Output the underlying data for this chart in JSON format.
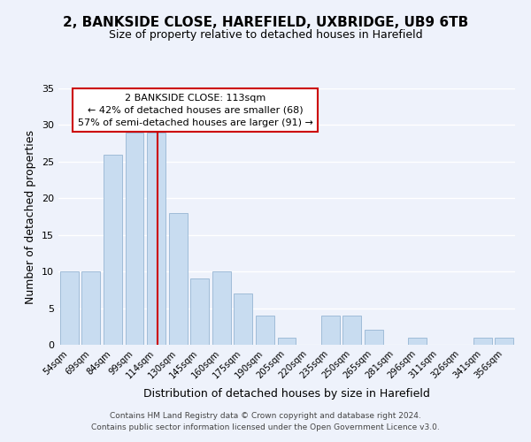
{
  "title": "2, BANKSIDE CLOSE, HAREFIELD, UXBRIDGE, UB9 6TB",
  "subtitle": "Size of property relative to detached houses in Harefield",
  "xlabel": "Distribution of detached houses by size in Harefield",
  "ylabel": "Number of detached properties",
  "bar_labels": [
    "54sqm",
    "69sqm",
    "84sqm",
    "99sqm",
    "114sqm",
    "130sqm",
    "145sqm",
    "160sqm",
    "175sqm",
    "190sqm",
    "205sqm",
    "220sqm",
    "235sqm",
    "250sqm",
    "265sqm",
    "281sqm",
    "296sqm",
    "311sqm",
    "326sqm",
    "341sqm",
    "356sqm"
  ],
  "bar_values": [
    10,
    10,
    26,
    29,
    29,
    18,
    9,
    10,
    7,
    4,
    1,
    0,
    4,
    4,
    2,
    0,
    1,
    0,
    0,
    1,
    1
  ],
  "bar_color": "#c8dcf0",
  "bar_edge_color": "#a0bcd8",
  "vline_x": 4.075,
  "vline_color": "#cc0000",
  "ylim": [
    0,
    35
  ],
  "yticks": [
    0,
    5,
    10,
    15,
    20,
    25,
    30,
    35
  ],
  "annotation_text": "2 BANKSIDE CLOSE: 113sqm\n← 42% of detached houses are smaller (68)\n57% of semi-detached houses are larger (91) →",
  "footer_line1": "Contains HM Land Registry data © Crown copyright and database right 2024.",
  "footer_line2": "Contains public sector information licensed under the Open Government Licence v3.0.",
  "bg_color": "#eef2fb",
  "plot_bg_color": "#eef2fb",
  "grid_color": "#ffffff"
}
